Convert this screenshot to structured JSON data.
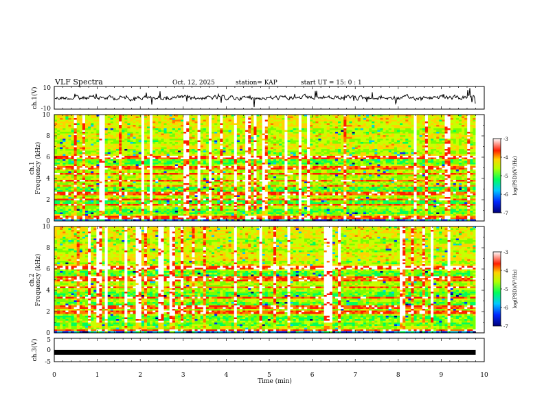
{
  "header": {
    "title": "VLF Spectra",
    "date": "Oct. 12, 2025",
    "station": "station= KAP",
    "start": "start  UT =   15: 0  : 1"
  },
  "chart_data": {
    "type": "heatmap",
    "x_range": [
      0,
      10
    ],
    "x_ticks": [
      "0",
      "1",
      "2",
      "3",
      "4",
      "5",
      "6",
      "7",
      "8",
      "9",
      "10"
    ],
    "xlabel": "Time (min)",
    "data_end_min": 9.8,
    "ch1_waveform": {
      "label": "ch.1(V)",
      "ylim": [
        -10,
        10
      ],
      "tick_top": "10",
      "tick_bottom": "-10"
    },
    "spectrograms": [
      {
        "label_line1": "ch.1",
        "label_line2": "Frequency (kHz)",
        "ylim": [
          0,
          10
        ],
        "y_ticks": [
          "0",
          "2",
          "4",
          "6",
          "8",
          "10"
        ],
        "colorbar": {
          "label": "log(PSD)(V²/Hz)",
          "range": [
            -7,
            -3
          ],
          "ticks": [
            "-3",
            "-4",
            "-5",
            "-6",
            "-7"
          ]
        },
        "strong_bands_khz": [
          0.3,
          1.5,
          2.0,
          2.6,
          3.3,
          3.8,
          4.4,
          5.0,
          6.0
        ],
        "quiet_bands_khz": [
          0.9,
          1.8,
          2.9,
          3.2,
          5.6,
          6.5,
          7.5,
          8.5
        ]
      },
      {
        "label_line1": "ch.2",
        "label_line2": "Frequency (kHz)",
        "ylim": [
          0,
          10
        ],
        "y_ticks": [
          "0",
          "2",
          "4",
          "6",
          "8",
          "10"
        ],
        "colorbar": {
          "label": "log(PSD)(V²/Hz)",
          "range": [
            -7,
            -3
          ],
          "ticks": [
            "-3",
            "-4",
            "-5",
            "-6",
            "-7"
          ]
        },
        "strong_bands_khz": [
          0.2,
          1.9,
          2.4,
          3.3,
          4.3,
          4.9,
          5.2,
          6.1
        ],
        "quiet_bands_khz": [
          0.8,
          1.4,
          2.7,
          3.6,
          5.6,
          6.6,
          7.7,
          8.6
        ]
      }
    ],
    "ch3_waveform": {
      "label": "ch.3(V)",
      "ylim": [
        -5,
        5
      ],
      "y_ticks": [
        "5",
        "0",
        "-5"
      ],
      "level_v": -1.0
    }
  }
}
